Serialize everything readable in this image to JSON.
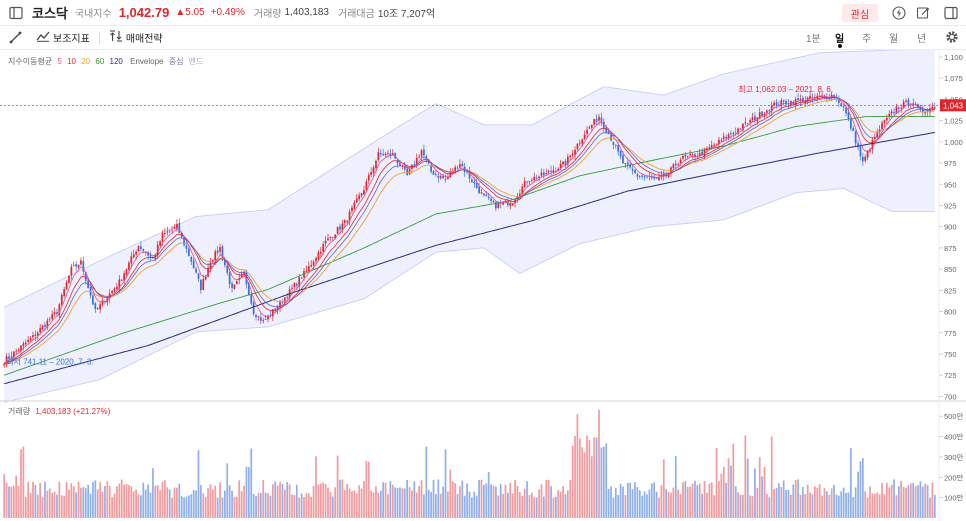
{
  "header": {
    "name": "코스닥",
    "category": "국내지수",
    "price": "1,042.79",
    "change": "▲5.05",
    "change_pct": "+0.49%",
    "volume_label": "거래량",
    "volume": "1,403,183",
    "amount_label": "거래대금",
    "amount": "10조 7,207억",
    "favorite_label": "관심"
  },
  "toolbar": {
    "indicator_label": "보조지표",
    "strategy_label": "매매전략",
    "timeframes": [
      "1분",
      "일",
      "주",
      "월",
      "년"
    ],
    "active_timeframe": "일"
  },
  "icons": [
    "sidebar-toggle-icon",
    "lightning-icon",
    "edit-icon",
    "split-panel-icon",
    "draw-line-icon",
    "indicator-chart-icon",
    "strategy-icon",
    "settings-gear-icon"
  ],
  "colors": {
    "up": "#e0252e",
    "down": "#3a6fe0",
    "ma5": "#e84a8a",
    "ma10": "#e0252e",
    "ma20": "#f0a030",
    "ma60": "#3a9a3a",
    "ma120": "#2a2a80",
    "envelope": "#c9cdf5"
  },
  "legend": {
    "title": "지수이동평균",
    "periods": [
      "5",
      "10",
      "20",
      "60",
      "120"
    ],
    "envelope": "Envelope",
    "center": "중심",
    "band": "밴드"
  },
  "annotations": {
    "high": "최고 1,062.03 – 2021. 8. 6.",
    "low": "최저 741.11 – 2020. 7. 3."
  },
  "chart_data": {
    "type": "candlestick",
    "price_axis_ticks": [
      1100,
      1075,
      1050,
      1025,
      1000,
      975,
      950,
      925,
      900,
      875,
      850,
      825,
      800,
      775,
      750,
      725,
      700
    ],
    "price_axis_labels": [
      "1,100",
      "1,075",
      "1,050",
      "1,025",
      "1,000",
      "975",
      "950",
      "925",
      "900",
      "875",
      "850",
      "825",
      "800",
      "775",
      "750",
      "725",
      "700"
    ],
    "ylim": [
      697,
      1107
    ],
    "current_price": 1043,
    "current_price_label": "1,043",
    "high": 1062.03,
    "low": 741.11,
    "close_anchors": [
      [
        0,
        742
      ],
      [
        12,
        770
      ],
      [
        22,
        800
      ],
      [
        28,
        850
      ],
      [
        32,
        858
      ],
      [
        38,
        800
      ],
      [
        48,
        835
      ],
      [
        56,
        878
      ],
      [
        62,
        862
      ],
      [
        66,
        890
      ],
      [
        72,
        900
      ],
      [
        78,
        860
      ],
      [
        82,
        828
      ],
      [
        86,
        860
      ],
      [
        90,
        875
      ],
      [
        95,
        825
      ],
      [
        100,
        845
      ],
      [
        104,
        800
      ],
      [
        108,
        788
      ],
      [
        112,
        800
      ],
      [
        118,
        820
      ],
      [
        126,
        848
      ],
      [
        134,
        882
      ],
      [
        142,
        905
      ],
      [
        150,
        945
      ],
      [
        156,
        985
      ],
      [
        162,
        985
      ],
      [
        168,
        960
      ],
      [
        174,
        990
      ],
      [
        178,
        965
      ],
      [
        184,
        955
      ],
      [
        190,
        975
      ],
      [
        196,
        950
      ],
      [
        200,
        935
      ],
      [
        205,
        925
      ],
      [
        212,
        930
      ],
      [
        218,
        955
      ],
      [
        226,
        962
      ],
      [
        234,
        975
      ],
      [
        242,
        1010
      ],
      [
        248,
        1030
      ],
      [
        252,
        1010
      ],
      [
        258,
        975
      ],
      [
        264,
        960
      ],
      [
        268,
        958
      ],
      [
        272,
        955
      ],
      [
        276,
        960
      ],
      [
        282,
        980
      ],
      [
        290,
        985
      ],
      [
        298,
        1000
      ],
      [
        306,
        1015
      ],
      [
        314,
        1030
      ],
      [
        322,
        1045
      ],
      [
        330,
        1048
      ],
      [
        338,
        1052
      ],
      [
        346,
        1055
      ],
      [
        350,
        1040
      ],
      [
        354,
        1010
      ],
      [
        358,
        975
      ],
      [
        362,
        1000
      ],
      [
        366,
        1020
      ],
      [
        372,
        1040
      ],
      [
        378,
        1048
      ],
      [
        382,
        1035
      ],
      [
        388,
        1042
      ]
    ],
    "ma120_anchors": [
      [
        0,
        715
      ],
      [
        60,
        760
      ],
      [
        120,
        822
      ],
      [
        180,
        878
      ],
      [
        220,
        907
      ],
      [
        260,
        942
      ],
      [
        300,
        965
      ],
      [
        340,
        987
      ],
      [
        388,
        1011
      ]
    ],
    "ma60_anchors": [
      [
        0,
        725
      ],
      [
        50,
        775
      ],
      [
        90,
        810
      ],
      [
        110,
        826
      ],
      [
        150,
        875
      ],
      [
        180,
        915
      ],
      [
        210,
        930
      ],
      [
        240,
        960
      ],
      [
        270,
        978
      ],
      [
        300,
        995
      ],
      [
        330,
        1018
      ],
      [
        360,
        1030
      ],
      [
        388,
        1030
      ]
    ],
    "envelope_upper_anchors": [
      [
        0,
        805
      ],
      [
        40,
        860
      ],
      [
        80,
        912
      ],
      [
        110,
        920
      ],
      [
        160,
        1010
      ],
      [
        180,
        1045
      ],
      [
        200,
        1020
      ],
      [
        220,
        1020
      ],
      [
        250,
        1065
      ],
      [
        275,
        1055
      ],
      [
        300,
        1080
      ],
      [
        340,
        1105
      ],
      [
        388,
        1110
      ]
    ],
    "envelope_lower_anchors": [
      [
        0,
        693
      ],
      [
        40,
        720
      ],
      [
        80,
        776
      ],
      [
        110,
        782
      ],
      [
        150,
        815
      ],
      [
        180,
        870
      ],
      [
        200,
        875
      ],
      [
        215,
        845
      ],
      [
        240,
        880
      ],
      [
        270,
        900
      ],
      [
        300,
        908
      ],
      [
        330,
        940
      ],
      [
        350,
        945
      ],
      [
        370,
        918
      ],
      [
        388,
        918
      ]
    ],
    "volume_axis_ticks": [
      100,
      200,
      300,
      400,
      500
    ],
    "volume_axis_labels": [
      "100만",
      "200만",
      "300만",
      "400만",
      "500만"
    ],
    "volume_max": 550,
    "volume_label": "거래량",
    "volume_value": "1,403,183 (+21.27%)"
  }
}
